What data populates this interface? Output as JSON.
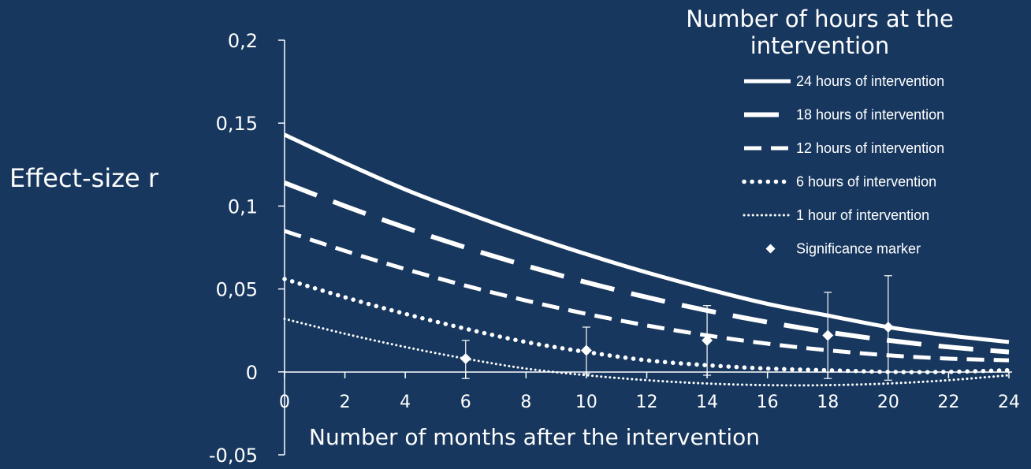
{
  "chart_data": {
    "type": "line",
    "title": "",
    "xlabel": "Number of months after the intervention",
    "ylabel": "Effect-size r",
    "xlim": [
      0,
      24
    ],
    "ylim": [
      -0.05,
      0.2
    ],
    "x_ticks": [
      0,
      2,
      4,
      6,
      8,
      10,
      12,
      14,
      16,
      18,
      20,
      22,
      24
    ],
    "x_tick_labels": [
      "0",
      "2",
      "4",
      "6",
      "8",
      "10",
      "12",
      "14",
      "16",
      "18",
      "20",
      "22",
      "24"
    ],
    "y_ticks": [
      -0.05,
      0,
      0.05,
      0.1,
      0.15,
      0.2
    ],
    "y_tick_labels": [
      "-0,05",
      "0",
      "0,05",
      "0,1",
      "0,15",
      "0,2"
    ],
    "grid": false,
    "legend_title": "Number of hours at the intervention",
    "legend_position": "top-right",
    "x": [
      0,
      2,
      4,
      6,
      8,
      10,
      12,
      14,
      16,
      18,
      20,
      22,
      24
    ],
    "series": [
      {
        "name": "24 hours of intervention",
        "style": "solid-thick",
        "values": [
          0.143,
          0.126,
          0.11,
          0.096,
          0.083,
          0.071,
          0.06,
          0.05,
          0.041,
          0.034,
          0.027,
          0.022,
          0.018
        ]
      },
      {
        "name": "18 hours of intervention",
        "style": "long-dash",
        "values": [
          0.114,
          0.1,
          0.087,
          0.075,
          0.064,
          0.054,
          0.045,
          0.037,
          0.03,
          0.024,
          0.019,
          0.015,
          0.012
        ]
      },
      {
        "name": "12 hours of intervention",
        "style": "dash",
        "values": [
          0.085,
          0.073,
          0.062,
          0.052,
          0.043,
          0.035,
          0.028,
          0.022,
          0.017,
          0.013,
          0.01,
          0.008,
          0.007
        ]
      },
      {
        "name": "6 hours of intervention",
        "style": "dot",
        "values": [
          0.056,
          0.045,
          0.035,
          0.026,
          0.018,
          0.012,
          0.007,
          0.004,
          0.002,
          0.001,
          0.0,
          0.0,
          0.001
        ]
      },
      {
        "name": "1 hour of intervention",
        "style": "fine-dot",
        "values": [
          0.032,
          0.023,
          0.015,
          0.008,
          0.002,
          -0.002,
          -0.005,
          -0.007,
          -0.008,
          -0.008,
          -0.007,
          -0.005,
          -0.002
        ]
      },
      {
        "name": "Significance marker",
        "style": "marker",
        "points": [
          {
            "x": 6,
            "y": 0.008,
            "low": -0.004,
            "high": 0.019
          },
          {
            "x": 10,
            "y": 0.013,
            "low": -0.001,
            "high": 0.027
          },
          {
            "x": 14,
            "y": 0.019,
            "low": -0.002,
            "high": 0.04
          },
          {
            "x": 18,
            "y": 0.022,
            "low": -0.004,
            "high": 0.048
          },
          {
            "x": 20,
            "y": 0.027,
            "low": -0.005,
            "high": 0.058
          }
        ]
      }
    ],
    "colors": {
      "background": "#17375e",
      "foreground": "#ffffff"
    }
  }
}
